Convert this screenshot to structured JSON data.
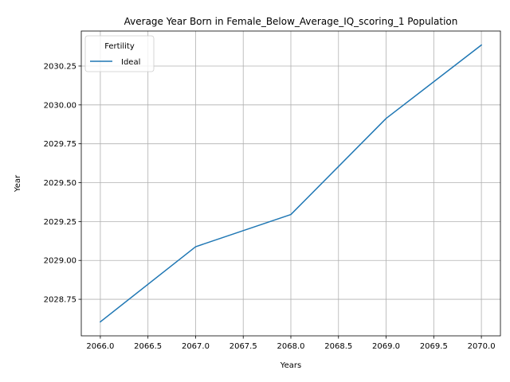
{
  "chart_data": {
    "type": "line",
    "title": "Average Year Born in Female_Below_Average_IQ_scoring_1 Population",
    "xlabel": "Years",
    "ylabel": "Year",
    "x": [
      2066,
      2067,
      2068,
      2069,
      2070
    ],
    "series": [
      {
        "name": "Ideal",
        "color": "#1f77b4",
        "values": [
          2028.605,
          2029.088,
          2029.295,
          2029.913,
          2030.385
        ]
      }
    ],
    "xlim": [
      2065.8,
      2070.2
    ],
    "ylim": [
      2028.515,
      2030.475
    ],
    "xticks": [
      2066.0,
      2066.5,
      2067.0,
      2067.5,
      2068.0,
      2068.5,
      2069.0,
      2069.5,
      2070.0
    ],
    "xtick_labels": [
      "2066.0",
      "2066.5",
      "2067.0",
      "2067.5",
      "2068.0",
      "2068.5",
      "2069.0",
      "2069.5",
      "2070.0"
    ],
    "yticks": [
      2028.75,
      2029.0,
      2029.25,
      2029.5,
      2029.75,
      2030.0,
      2030.25
    ],
    "ytick_labels": [
      "2028.75",
      "2029.00",
      "2029.25",
      "2029.50",
      "2029.75",
      "2030.00",
      "2030.25"
    ],
    "grid": true,
    "legend": {
      "title": "Fertility",
      "position": "top-left"
    }
  }
}
